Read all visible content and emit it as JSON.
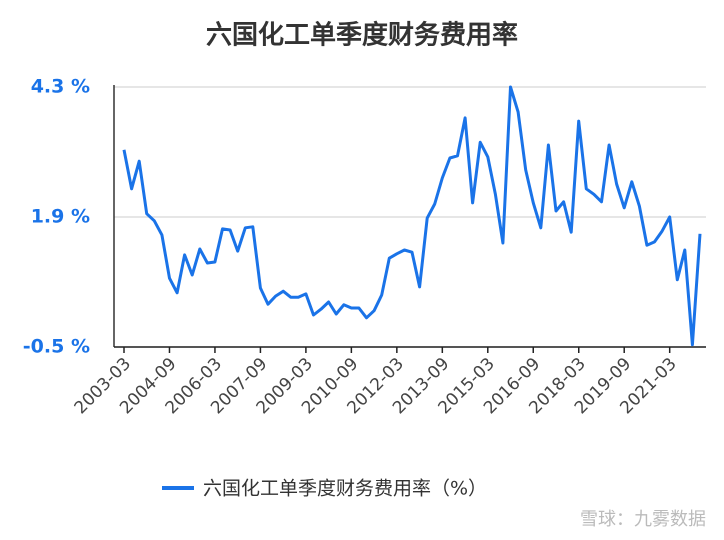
{
  "chart_data": {
    "type": "line",
    "title": "六国化工单季度财务费用率",
    "categories": [
      "2003-03",
      null,
      null,
      null,
      null,
      null,
      "2004-09",
      null,
      null,
      null,
      null,
      null,
      "2006-03",
      null,
      null,
      null,
      null,
      null,
      "2007-09",
      null,
      null,
      null,
      null,
      null,
      "2009-03",
      null,
      null,
      null,
      null,
      null,
      "2010-09",
      null,
      null,
      null,
      null,
      null,
      "2012-03",
      null,
      null,
      null,
      null,
      null,
      "2013-09",
      null,
      null,
      null,
      null,
      null,
      "2015-03",
      null,
      null,
      null,
      null,
      null,
      "2016-09",
      null,
      null,
      null,
      null,
      null,
      "2018-03",
      null,
      null,
      null,
      null,
      null,
      "2019-09",
      null,
      null,
      null,
      null,
      null,
      "2021-03",
      null,
      null,
      null,
      null
    ],
    "series": [
      {
        "name": "六国化工单季度财务费用率（%）",
        "color": "#1a73e8",
        "values": [
          3.14,
          2.42,
          2.93,
          1.96,
          1.83,
          1.57,
          0.77,
          0.5,
          1.2,
          0.83,
          1.31,
          1.05,
          1.07,
          1.68,
          1.66,
          1.27,
          1.7,
          1.72,
          0.59,
          0.29,
          0.44,
          0.53,
          0.42,
          0.42,
          0.48,
          0.09,
          0.2,
          0.33,
          0.11,
          0.28,
          0.22,
          0.22,
          0.04,
          0.17,
          0.46,
          1.14,
          1.22,
          1.29,
          1.25,
          0.61,
          1.88,
          2.14,
          2.62,
          2.99,
          3.03,
          3.73,
          2.16,
          3.28,
          3.01,
          2.32,
          1.42,
          4.3,
          3.84,
          2.77,
          2.16,
          1.7,
          3.23,
          2.01,
          2.18,
          1.62,
          3.67,
          2.42,
          2.32,
          2.18,
          3.23,
          2.51,
          2.07,
          2.55,
          2.1,
          1.38,
          1.44,
          1.64,
          1.9,
          0.74,
          1.29,
          -0.46,
          1.59
        ]
      }
    ],
    "ylim": [
      -0.5,
      4.3
    ],
    "yticks": [
      {
        "value": -0.5,
        "label": "-0.5 %"
      },
      {
        "value": 1.9,
        "label": "1.9 %"
      },
      {
        "value": 4.3,
        "label": "4.3 %"
      }
    ],
    "grid": true,
    "legend": "bottom",
    "watermark": "雪球：九雾数据"
  }
}
